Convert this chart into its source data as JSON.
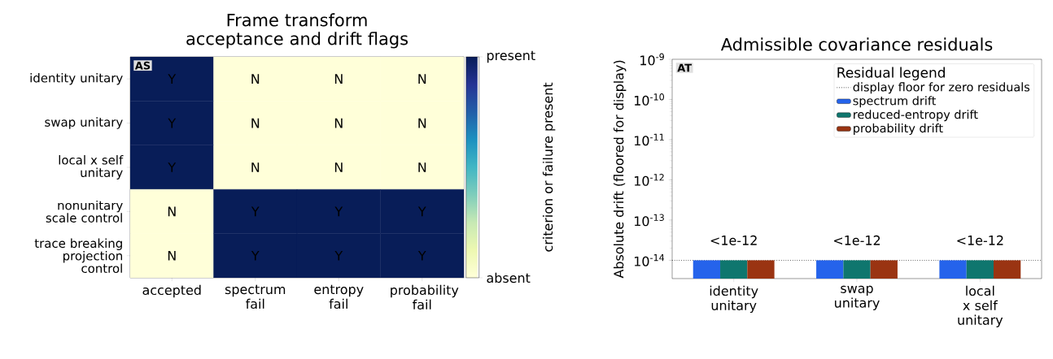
{
  "chart_data": [
    {
      "type": "heatmap",
      "title": "Frame transform acceptance and drift flags",
      "categories": [
        "accepted",
        "spectrum fail",
        "entropy fail",
        "probability fail"
      ],
      "y_categories": [
        "identity unitary",
        "swap unitary",
        "local x self unitary",
        "nonunitary scale control",
        "trace breaking projection control"
      ],
      "cells": [
        [
          1,
          0,
          0,
          0
        ],
        [
          1,
          0,
          0,
          0
        ],
        [
          1,
          0,
          0,
          0
        ],
        [
          0,
          1,
          1,
          1
        ],
        [
          0,
          1,
          1,
          1
        ]
      ],
      "cell_labels": [
        [
          "Y",
          "N",
          "N",
          "N"
        ],
        [
          "Y",
          "N",
          "N",
          "N"
        ],
        [
          "Y",
          "N",
          "N",
          "N"
        ],
        [
          "N",
          "Y",
          "Y",
          "Y"
        ],
        [
          "N",
          "Y",
          "Y",
          "Y"
        ]
      ],
      "clim": [
        0,
        1
      ],
      "cticks": [
        {
          "value": 0,
          "label": "absent"
        },
        {
          "value": 1,
          "label": "present"
        }
      ],
      "clabel": "criterion or failure present",
      "annotations": [
        "AS"
      ]
    },
    {
      "type": "bar",
      "title": "Admissible covariance residuals",
      "ylabel": "Absolute drift (floored for display)",
      "categories": [
        "identity unitary",
        "swap unitary",
        "local x self unitary"
      ],
      "series": [
        {
          "name": "spectrum drift",
          "color": "#2563eb",
          "values": [
            1e-14,
            1e-14,
            1e-14
          ]
        },
        {
          "name": "reduced-entropy drift",
          "color": "#0f766e",
          "values": [
            1e-14,
            1e-14,
            1e-14
          ],
          "value_labels": [
            "<1e-12",
            "<1e-12",
            "<1e-12"
          ]
        },
        {
          "name": "probability drift",
          "color": "#9a3412",
          "values": [
            1e-14,
            1e-14,
            1e-14
          ]
        }
      ],
      "log": "y",
      "ylim": [
        3.5e-15,
        1e-09
      ],
      "yticks": [
        {
          "value": 1e-14,
          "label": "10$^{-14}$"
        },
        {
          "value": 1e-13,
          "label": "10$^{-13}$"
        },
        {
          "value": 1e-12,
          "label": "10$^{-12}$"
        },
        {
          "value": 1e-11,
          "label": "10$^{-11}$"
        },
        {
          "value": 1e-10,
          "label": "10$^{-10}$"
        },
        {
          "value": 1e-09,
          "label": "10$^{-9}$"
        }
      ],
      "ref_lines": [
        {
          "axis": "y",
          "value": 1e-14,
          "label": "display floor for zero residuals",
          "line_style": "dotted"
        }
      ],
      "legend_title": "Residual legend",
      "legend": "top right",
      "grid": false,
      "annotations": [
        "AT"
      ]
    }
  ]
}
